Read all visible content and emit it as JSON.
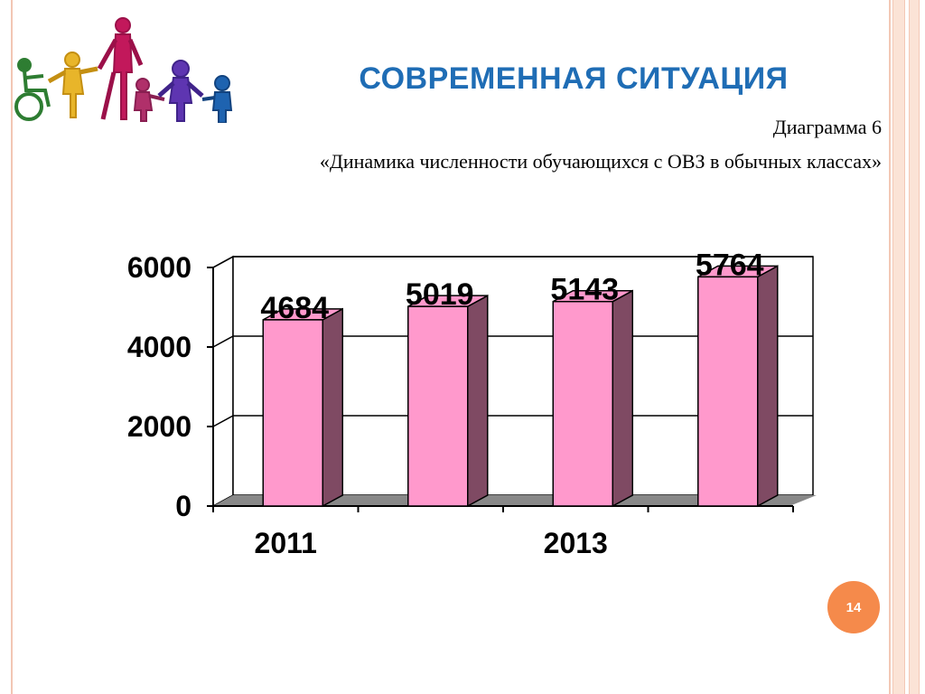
{
  "slide": {
    "title": "СОВРЕМЕННАЯ СИТУАЦИЯ",
    "diagram_label": "Диаграмма  6",
    "diagram_caption": "«Динамика численности обучающихся с  ОВЗ  в обычных классах»",
    "page_number": "14"
  },
  "logo": {
    "icon": "children-holding-hands-icon"
  },
  "colors": {
    "title": "#1f6db5",
    "bar_front": "#ff99cc",
    "bar_side": "#7f4a63",
    "floor": "#888888",
    "accent": "#f58a4b"
  },
  "chart_data": {
    "type": "bar",
    "categories": [
      "2011",
      "",
      "2013",
      ""
    ],
    "values": [
      4684,
      5019,
      5143,
      5764
    ],
    "data_labels": [
      "4684",
      "5019",
      "5143",
      "5764"
    ],
    "ylim": [
      0,
      6000
    ],
    "yticks": [
      0,
      2000,
      4000,
      6000
    ],
    "ytick_labels": [
      "0",
      "2000",
      "4000",
      "6000"
    ],
    "grid": true,
    "legend": "none",
    "style": "3d"
  }
}
